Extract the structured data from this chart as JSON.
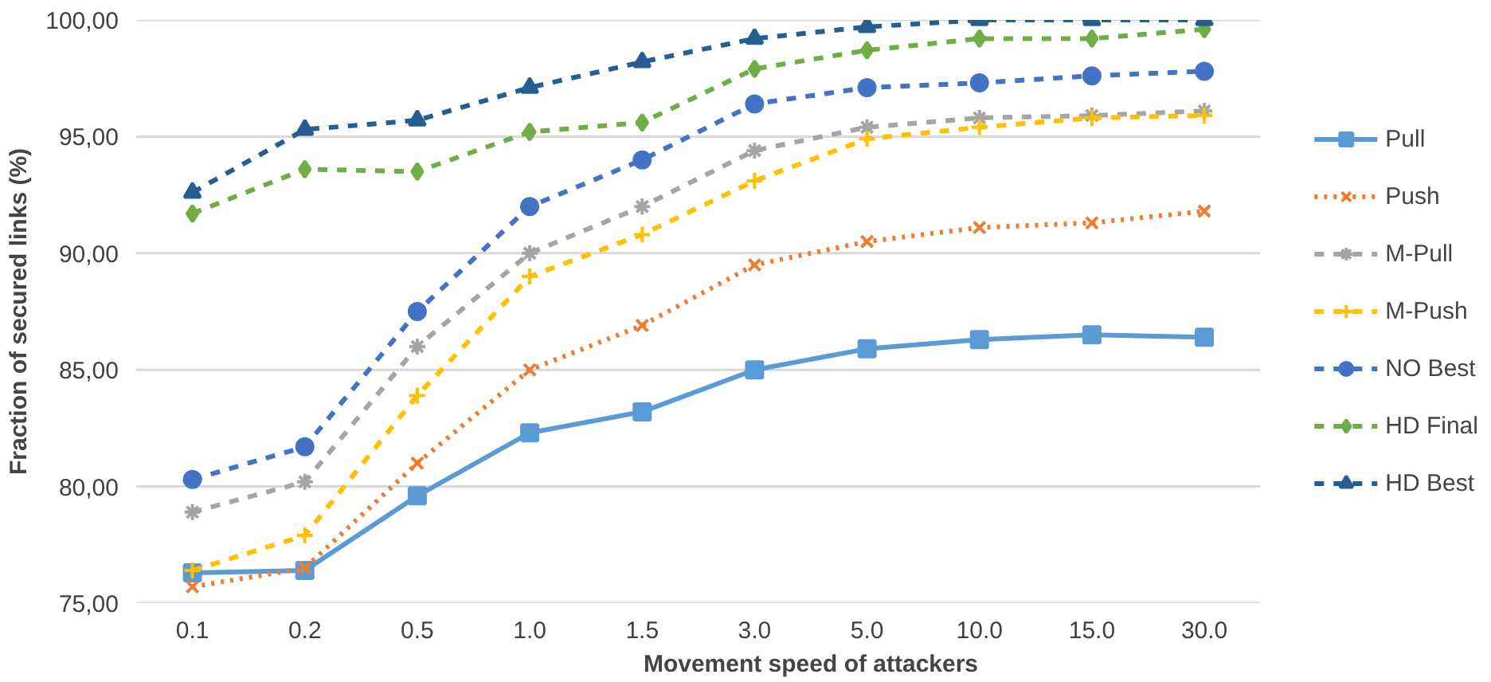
{
  "chart_data": {
    "type": "line",
    "xlabel": "Movement speed of attackers",
    "ylabel": "Fraction of secured links (%)",
    "categories": [
      "0.1",
      "0.2",
      "0.5",
      "1.0",
      "1.5",
      "3.0",
      "5.0",
      "10.0",
      "15.0",
      "30.0"
    ],
    "ylim": [
      75,
      100
    ],
    "yticks": [
      {
        "value": 75,
        "label": "75,00"
      },
      {
        "value": 80,
        "label": "80,00"
      },
      {
        "value": 85,
        "label": "85,00"
      },
      {
        "value": 90,
        "label": "90,00"
      },
      {
        "value": 95,
        "label": "95,00"
      },
      {
        "value": 100,
        "label": "100,00"
      }
    ],
    "grid": "y",
    "legend": "right",
    "series": [
      {
        "name": "Pull",
        "color": "#5b9bd5",
        "marker": "square",
        "line_style": "solid",
        "values": [
          76.3,
          76.4,
          79.6,
          82.3,
          83.2,
          85.0,
          85.9,
          86.3,
          86.5,
          86.4
        ]
      },
      {
        "name": "Push",
        "color": "#ed7d31",
        "marker": "x",
        "line_style": "dotted",
        "values": [
          75.7,
          76.5,
          81.0,
          85.0,
          86.9,
          89.5,
          90.5,
          91.1,
          91.3,
          91.8
        ]
      },
      {
        "name": "M-Pull",
        "color": "#a5a5a5",
        "marker": "cross",
        "line_style": "dashed",
        "values": [
          78.9,
          80.2,
          86.0,
          90.0,
          92.0,
          94.4,
          95.4,
          95.8,
          95.9,
          96.1
        ]
      },
      {
        "name": "M-Push",
        "color": "#ffc000",
        "marker": "plus",
        "line_style": "dashed",
        "values": [
          76.4,
          77.9,
          83.9,
          89.0,
          90.8,
          93.1,
          94.9,
          95.4,
          95.8,
          95.9
        ]
      },
      {
        "name": "NO Best",
        "color": "#4472c4",
        "marker": "circle",
        "line_style": "dashed",
        "values": [
          80.3,
          81.7,
          87.5,
          92.0,
          94.0,
          96.4,
          97.1,
          97.3,
          97.6,
          97.8
        ]
      },
      {
        "name": "HD Final",
        "color": "#70ad47",
        "marker": "diamond",
        "line_style": "dashed",
        "values": [
          91.7,
          93.6,
          93.5,
          95.2,
          95.6,
          97.9,
          98.7,
          99.2,
          99.2,
          99.6
        ]
      },
      {
        "name": "HD Best",
        "color": "#255e91",
        "marker": "triangle",
        "line_style": "dashed",
        "values": [
          92.6,
          95.3,
          95.7,
          97.1,
          98.2,
          99.2,
          99.7,
          100.0,
          100.0,
          100.0
        ]
      }
    ]
  }
}
